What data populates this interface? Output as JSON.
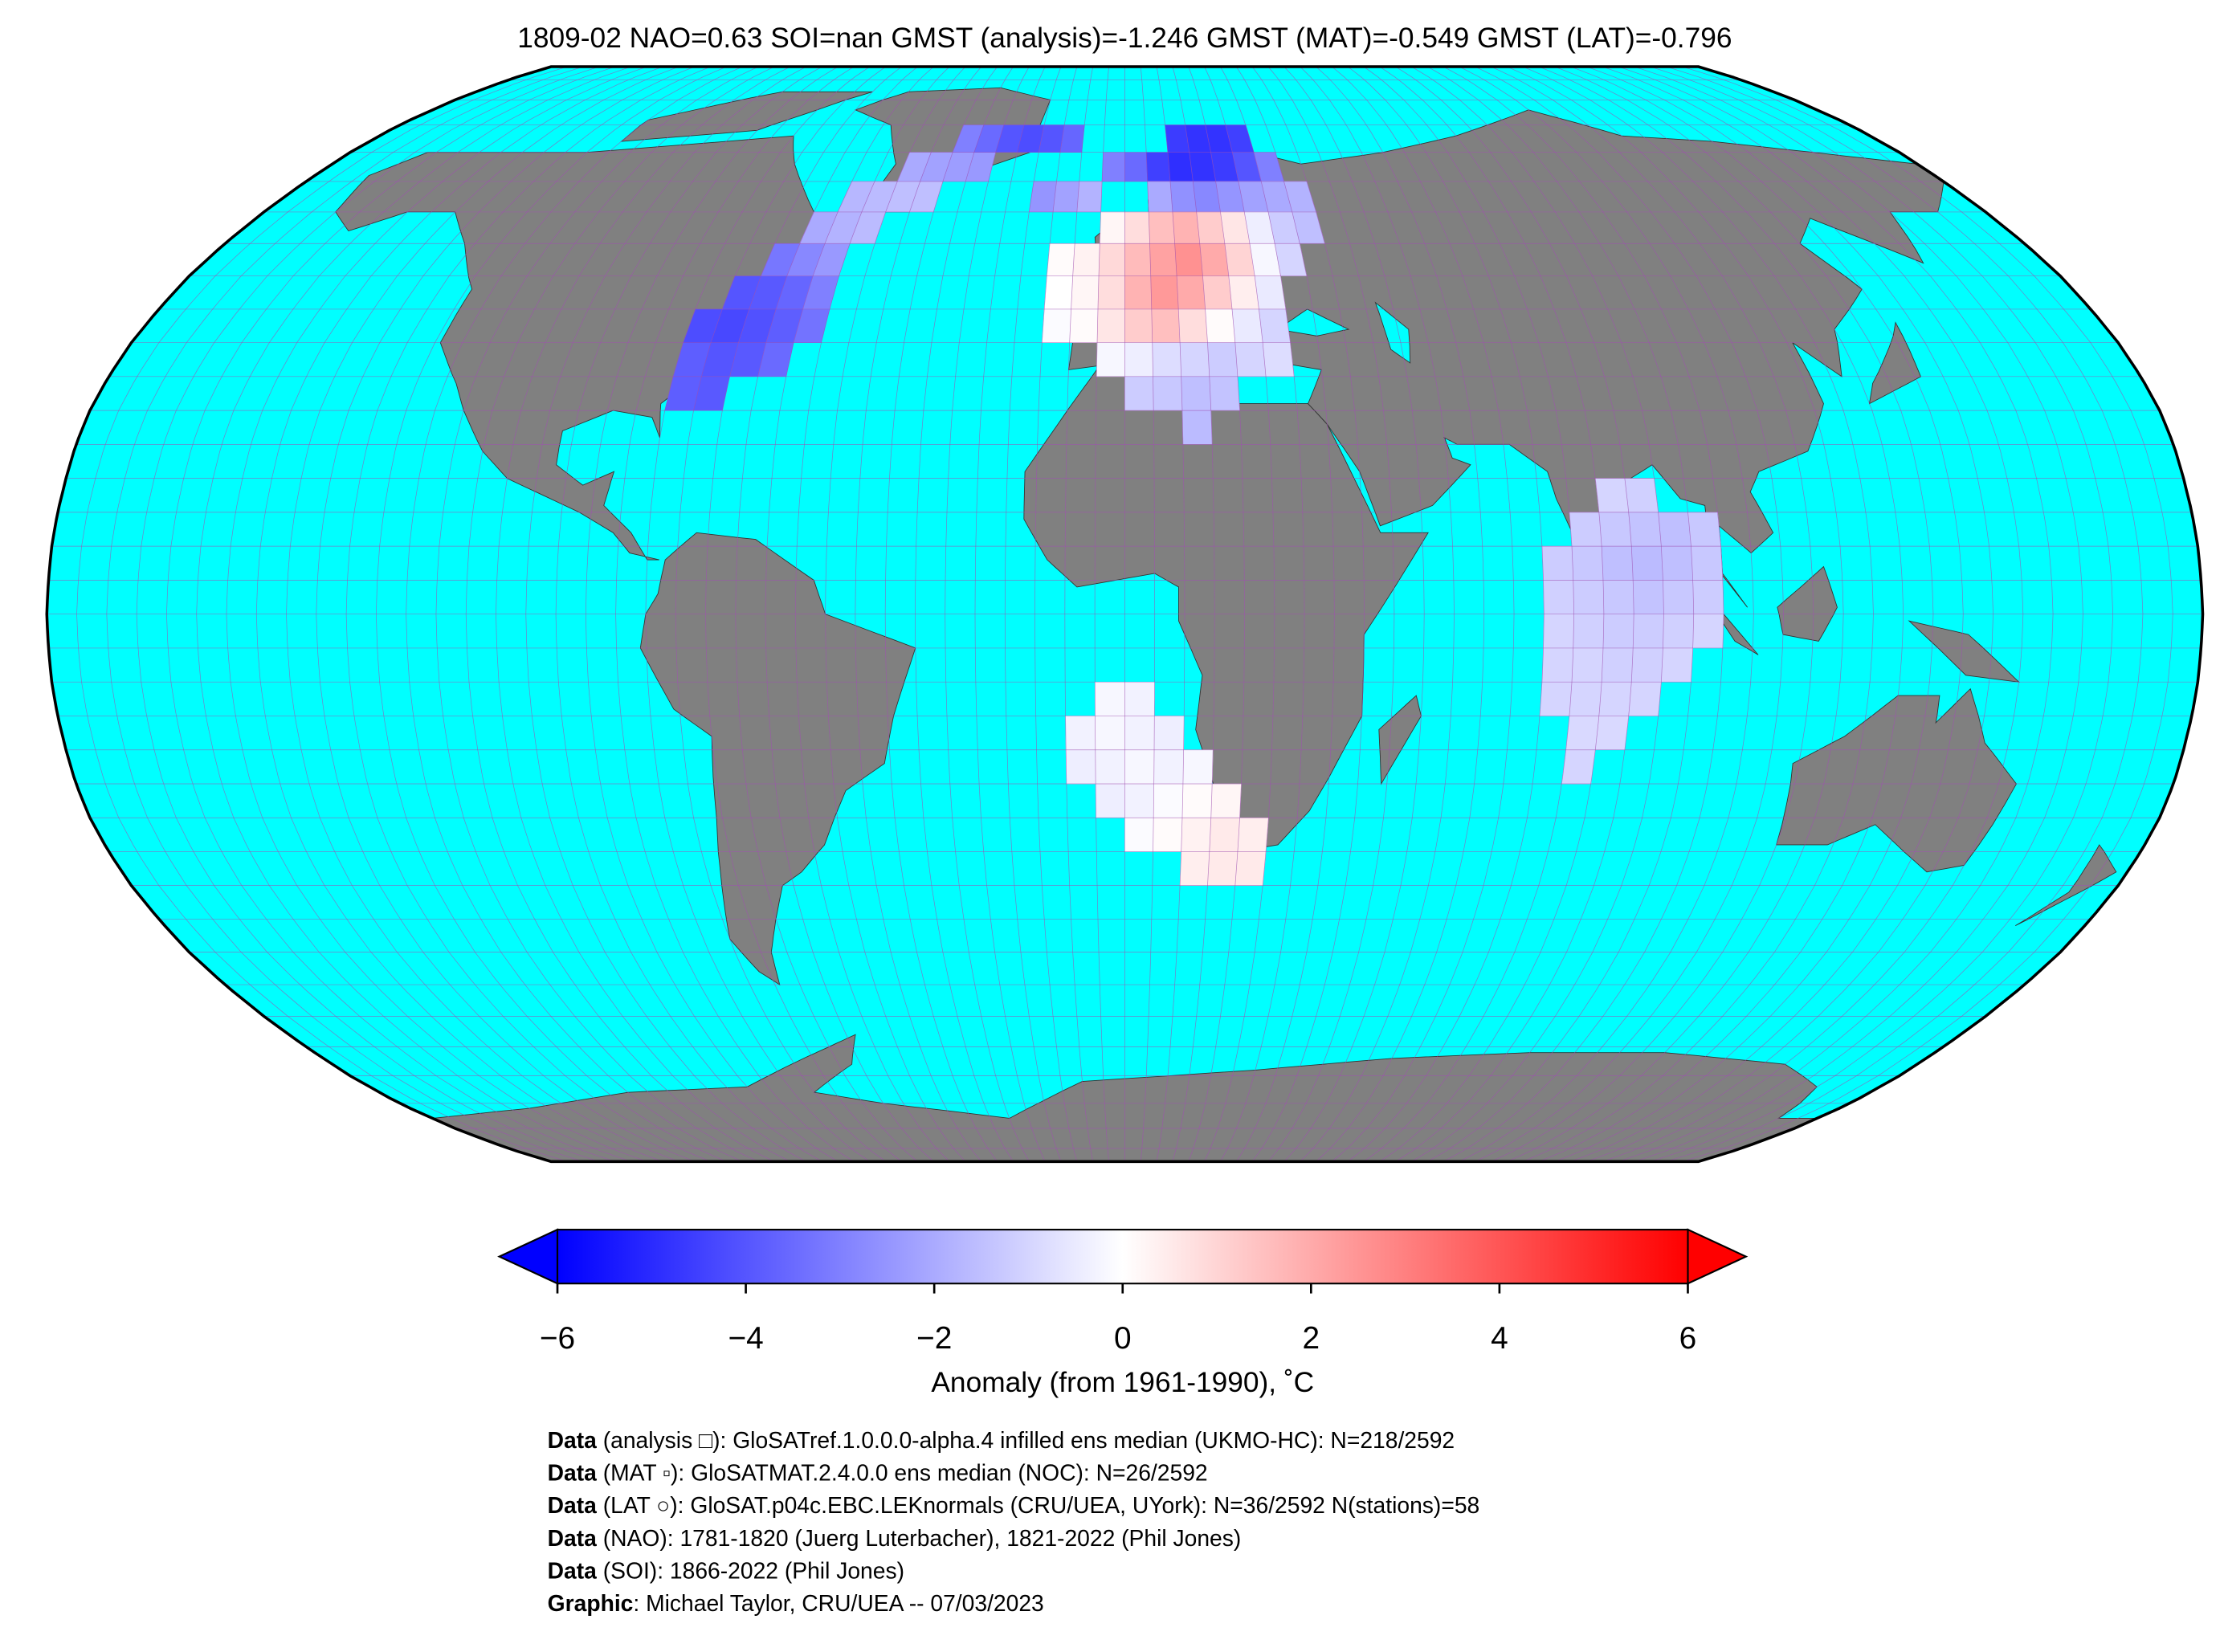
{
  "chart_data": {
    "type": "map",
    "title": "1809-02 NAO=0.63 SOI=nan GMST (analysis)=-1.246 GMST (MAT)=-0.549 GMST (LAT)=-0.796",
    "cell_size": 5,
    "cells": [
      [
        30,
        -80,
        -3.8
      ],
      [
        30,
        -75,
        -3.9
      ],
      [
        35,
        -80,
        -3.8
      ],
      [
        35,
        -75,
        -4
      ],
      [
        35,
        -70,
        -3.9
      ],
      [
        35,
        -65,
        -3.5
      ],
      [
        40,
        -80,
        -4.2
      ],
      [
        40,
        -75,
        -4.3
      ],
      [
        40,
        -70,
        -4.1
      ],
      [
        40,
        -65,
        -3.8
      ],
      [
        40,
        -60,
        -3.3
      ],
      [
        45,
        -75,
        -4
      ],
      [
        45,
        -70,
        -3.9
      ],
      [
        45,
        -65,
        -3.6
      ],
      [
        45,
        -60,
        -3
      ],
      [
        50,
        -70,
        -3.2
      ],
      [
        50,
        -65,
        -2.8
      ],
      [
        50,
        -60,
        -2.4
      ],
      [
        55,
        -65,
        -2
      ],
      [
        55,
        -60,
        -1.8
      ],
      [
        55,
        -55,
        -1.6
      ],
      [
        60,
        -60,
        -1.7
      ],
      [
        60,
        -55,
        -1.6
      ],
      [
        60,
        -50,
        -1.5
      ],
      [
        60,
        -45,
        -1.5
      ],
      [
        65,
        -50,
        -2
      ],
      [
        65,
        -45,
        -2.2
      ],
      [
        65,
        -40,
        -2.3
      ],
      [
        65,
        -35,
        -2.4
      ],
      [
        70,
        -40,
        -3
      ],
      [
        70,
        -35,
        -3.5
      ],
      [
        70,
        -30,
        -4
      ],
      [
        70,
        -25,
        -4.2
      ],
      [
        70,
        -20,
        -4
      ],
      [
        70,
        -15,
        -3.6
      ],
      [
        70,
        10,
        -4.6
      ],
      [
        70,
        15,
        -4.8
      ],
      [
        70,
        20,
        -4.8
      ],
      [
        70,
        25,
        -4.5
      ],
      [
        65,
        -5,
        -3
      ],
      [
        65,
        0,
        -3.5
      ],
      [
        65,
        5,
        -4.5
      ],
      [
        65,
        10,
        -4.9
      ],
      [
        65,
        15,
        -4.8
      ],
      [
        65,
        20,
        -4.6
      ],
      [
        65,
        25,
        -4
      ],
      [
        65,
        30,
        -3
      ],
      [
        60,
        -20,
        -2.5
      ],
      [
        60,
        -15,
        -2.2
      ],
      [
        60,
        -10,
        -1.8
      ],
      [
        60,
        5,
        -2
      ],
      [
        60,
        10,
        -2.6
      ],
      [
        60,
        15,
        -2.8
      ],
      [
        60,
        20,
        -2.5
      ],
      [
        60,
        25,
        -2.2
      ],
      [
        60,
        30,
        -2
      ],
      [
        60,
        35,
        -1.8
      ],
      [
        55,
        -5,
        0.2
      ],
      [
        55,
        0,
        0.8
      ],
      [
        55,
        5,
        1.5
      ],
      [
        55,
        10,
        1.8
      ],
      [
        55,
        15,
        1.2
      ],
      [
        55,
        20,
        0.6
      ],
      [
        55,
        25,
        -0.4
      ],
      [
        55,
        30,
        -1.2
      ],
      [
        55,
        35,
        -1.5
      ],
      [
        50,
        -15,
        0.1
      ],
      [
        50,
        -10,
        0.3
      ],
      [
        50,
        -5,
        0.9
      ],
      [
        50,
        0,
        1.6
      ],
      [
        50,
        5,
        2.2
      ],
      [
        50,
        10,
        2.6
      ],
      [
        50,
        15,
        2
      ],
      [
        50,
        20,
        1
      ],
      [
        50,
        25,
        -0.2
      ],
      [
        50,
        30,
        -1
      ],
      [
        45,
        -15,
        0
      ],
      [
        45,
        -10,
        0.2
      ],
      [
        45,
        -5,
        0.8
      ],
      [
        45,
        0,
        1.8
      ],
      [
        45,
        5,
        2.4
      ],
      [
        45,
        10,
        2
      ],
      [
        45,
        15,
        1.2
      ],
      [
        45,
        20,
        0.4
      ],
      [
        45,
        25,
        -0.5
      ],
      [
        40,
        -15,
        -0.1
      ],
      [
        40,
        -10,
        0.1
      ],
      [
        40,
        -5,
        0.6
      ],
      [
        40,
        0,
        1.2
      ],
      [
        40,
        5,
        1.5
      ],
      [
        40,
        10,
        0.8
      ],
      [
        40,
        15,
        0.1
      ],
      [
        40,
        20,
        -0.5
      ],
      [
        40,
        25,
        -1
      ],
      [
        35,
        -5,
        -0.2
      ],
      [
        35,
        0,
        -0.4
      ],
      [
        35,
        5,
        -0.8
      ],
      [
        35,
        10,
        -1
      ],
      [
        35,
        15,
        -1.2
      ],
      [
        35,
        20,
        -1
      ],
      [
        35,
        25,
        -0.8
      ],
      [
        30,
        0,
        -1.2
      ],
      [
        30,
        5,
        -1.3
      ],
      [
        30,
        10,
        -1.5
      ],
      [
        30,
        15,
        -1.4
      ],
      [
        25,
        10,
        -1.6
      ],
      [
        15,
        80,
        -1
      ],
      [
        15,
        85,
        -1.1
      ],
      [
        10,
        75,
        -1.2
      ],
      [
        10,
        80,
        -1.3
      ],
      [
        10,
        85,
        -1.4
      ],
      [
        10,
        90,
        -1.5
      ],
      [
        10,
        95,
        -1.3
      ],
      [
        5,
        70,
        -1.2
      ],
      [
        5,
        75,
        -1.3
      ],
      [
        5,
        80,
        -1.5
      ],
      [
        5,
        85,
        -1.6
      ],
      [
        5,
        90,
        -1.5
      ],
      [
        5,
        95,
        -1.3
      ],
      [
        0,
        70,
        -1.1
      ],
      [
        0,
        75,
        -1.2
      ],
      [
        0,
        80,
        -1.3
      ],
      [
        0,
        85,
        -1.4
      ],
      [
        0,
        90,
        -1.3
      ],
      [
        0,
        95,
        -1.2
      ],
      [
        -5,
        70,
        -1
      ],
      [
        -5,
        75,
        -1.1
      ],
      [
        -5,
        80,
        -1.2
      ],
      [
        -5,
        85,
        -1.2
      ],
      [
        -5,
        90,
        -1.1
      ],
      [
        -5,
        95,
        -1
      ],
      [
        -10,
        70,
        -1
      ],
      [
        -10,
        75,
        -1
      ],
      [
        -10,
        80,
        -1.1
      ],
      [
        -10,
        85,
        -1.1
      ],
      [
        -10,
        90,
        -1
      ],
      [
        -15,
        70,
        -1
      ],
      [
        -15,
        75,
        -1
      ],
      [
        -15,
        80,
        -1
      ],
      [
        -15,
        85,
        -1
      ],
      [
        -20,
        75,
        -0.9
      ],
      [
        -20,
        80,
        -0.9
      ],
      [
        -25,
        75,
        -1
      ],
      [
        -15,
        -5,
        -0.2
      ],
      [
        -15,
        0,
        -0.3
      ],
      [
        -20,
        -10,
        -0.3
      ],
      [
        -20,
        -5,
        -0.2
      ],
      [
        -20,
        0,
        -0.3
      ],
      [
        -20,
        5,
        -0.4
      ],
      [
        -25,
        -10,
        -0.4
      ],
      [
        -25,
        -5,
        -0.3
      ],
      [
        -25,
        0,
        -0.2
      ],
      [
        -25,
        5,
        -0.3
      ],
      [
        -25,
        10,
        -0.2
      ],
      [
        -30,
        -5,
        -0.4
      ],
      [
        -30,
        0,
        -0.3
      ],
      [
        -30,
        5,
        -0.1
      ],
      [
        -30,
        10,
        0.1
      ],
      [
        -30,
        15,
        0.2
      ],
      [
        -35,
        0,
        -0.1
      ],
      [
        -35,
        5,
        0.1
      ],
      [
        -35,
        10,
        0.3
      ],
      [
        -35,
        15,
        0.5
      ],
      [
        -35,
        20,
        0.4
      ],
      [
        -40,
        10,
        0.4
      ],
      [
        -40,
        15,
        0.5
      ],
      [
        -40,
        20,
        0.5
      ]
    ],
    "colorbar": {
      "lim": [
        -6,
        6
      ],
      "ticks": [
        {
          "value": -6,
          "label": "−6"
        },
        {
          "value": -4,
          "label": "−4"
        },
        {
          "value": -2,
          "label": "−2"
        },
        0,
        2,
        4,
        6
      ],
      "label": "Anomaly (from 1961-1990), ˚C"
    },
    "credits": [
      {
        "key": "Data",
        "text": " (analysis □): GloSATref.1.0.0.0-alpha.4 infilled ens median (UKMO-HC): N=218/2592"
      },
      {
        "key": "Data",
        "text": " (MAT ▫): GloSATMAT.2.4.0.0 ens median (NOC): N=26/2592"
      },
      {
        "key": "Data",
        "text": " (LAT ○): GloSAT.p04c.EBC.LEKnormals (CRU/UEA, UYork): N=36/2592 N(stations)=58"
      },
      {
        "key": "Data",
        "text": " (NAO): 1781-1820 (Juerg Luterbacher), 1821-2022 (Phil Jones)"
      },
      {
        "key": "Data",
        "text": " (SOI): 1866-2022 (Phil Jones)"
      },
      {
        "key": "Graphic",
        "text": ": Michael Taylor, CRU/UEA -- 07/03/2023"
      }
    ]
  }
}
